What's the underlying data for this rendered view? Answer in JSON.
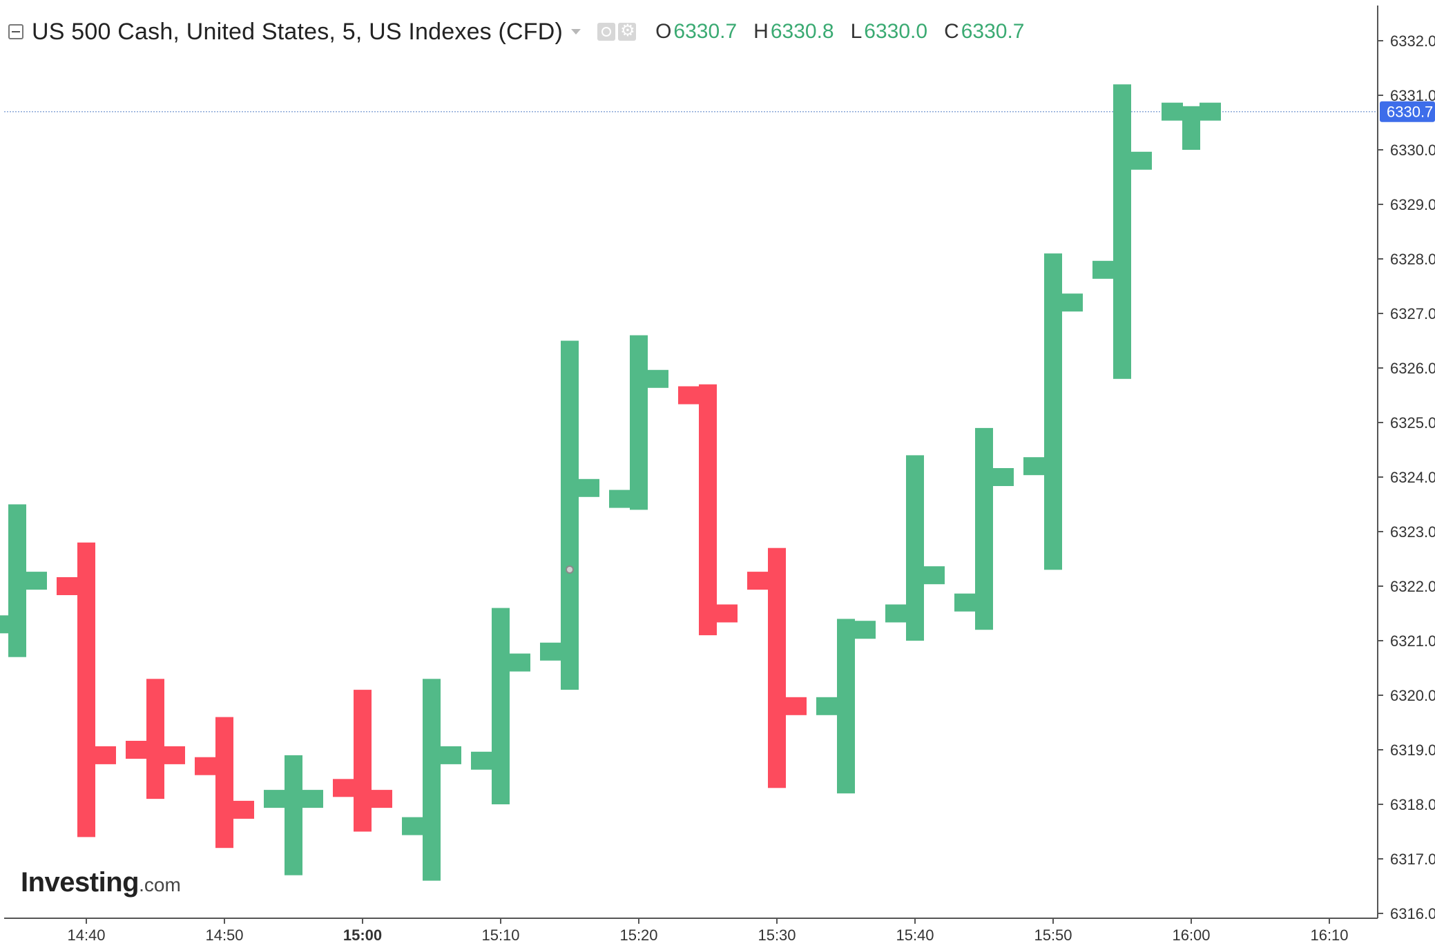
{
  "legend": {
    "title": "US 500 Cash, United States, 5, US Indexes (CFD)",
    "ohlc": [
      {
        "key": "O",
        "value": "6330.7"
      },
      {
        "key": "H",
        "value": "6330.8"
      },
      {
        "key": "L",
        "value": "6330.0"
      },
      {
        "key": "C",
        "value": "6330.7"
      }
    ],
    "controls": [
      "eye-icon",
      "gear-icon"
    ]
  },
  "logo": {
    "brand": "Investing",
    "tld": ".com"
  },
  "price_badge": "6330.7",
  "colors": {
    "up": "#52ba88",
    "down": "#fd4b5d",
    "badge": "#3d6dea",
    "price_line": "#8aa7d8",
    "axis": "#555555",
    "text": "#333333"
  },
  "chart_data": {
    "type": "ohlc",
    "interval": "5",
    "y_ticks": [
      "6316.0",
      "6317.0",
      "6318.0",
      "6319.0",
      "6320.0",
      "6321.0",
      "6322.0",
      "6323.0",
      "6324.0",
      "6325.0",
      "6326.0",
      "6327.0",
      "6328.0",
      "6329.0",
      "6330.0",
      "6331.0",
      "6332.0"
    ],
    "ylim": [
      6316.0,
      6332.0
    ],
    "x_ticks": [
      "14:40",
      "14:50",
      "15:00",
      "15:10",
      "15:20",
      "15:30",
      "15:40",
      "15:50",
      "16:00",
      "16:10"
    ],
    "x_tick_bold": "15:00",
    "current_price": 6330.7,
    "bars": [
      {
        "time": "14:35",
        "open": 6321.3,
        "high": 6323.5,
        "low": 6320.7,
        "close": 6322.1
      },
      {
        "time": "14:40",
        "open": 6322.0,
        "high": 6322.8,
        "low": 6317.4,
        "close": 6318.9
      },
      {
        "time": "14:45",
        "open": 6319.0,
        "high": 6320.3,
        "low": 6318.1,
        "close": 6318.9
      },
      {
        "time": "14:50",
        "open": 6318.7,
        "high": 6319.6,
        "low": 6317.2,
        "close": 6317.9
      },
      {
        "time": "14:55",
        "open": 6318.1,
        "high": 6318.9,
        "low": 6316.7,
        "close": 6318.1
      },
      {
        "time": "15:00",
        "open": 6318.3,
        "high": 6320.1,
        "low": 6317.5,
        "close": 6318.1
      },
      {
        "time": "15:05",
        "open": 6317.6,
        "high": 6320.3,
        "low": 6316.6,
        "close": 6318.9
      },
      {
        "time": "15:10",
        "open": 6318.8,
        "high": 6321.6,
        "low": 6318.0,
        "close": 6320.6
      },
      {
        "time": "15:15",
        "open": 6320.8,
        "high": 6326.5,
        "low": 6320.1,
        "close": 6323.8
      },
      {
        "time": "15:20",
        "open": 6323.6,
        "high": 6326.6,
        "low": 6323.4,
        "close": 6325.8
      },
      {
        "time": "15:25",
        "open": 6325.5,
        "high": 6325.7,
        "low": 6321.1,
        "close": 6321.5
      },
      {
        "time": "15:30",
        "open": 6322.1,
        "high": 6322.7,
        "low": 6318.3,
        "close": 6319.8
      },
      {
        "time": "15:35",
        "open": 6319.8,
        "high": 6321.4,
        "low": 6318.2,
        "close": 6321.2
      },
      {
        "time": "15:40",
        "open": 6321.5,
        "high": 6324.4,
        "low": 6321.0,
        "close": 6322.2
      },
      {
        "time": "15:45",
        "open": 6321.7,
        "high": 6324.9,
        "low": 6321.2,
        "close": 6324.0
      },
      {
        "time": "15:50",
        "open": 6324.2,
        "high": 6328.1,
        "low": 6322.3,
        "close": 6327.2
      },
      {
        "time": "15:55",
        "open": 6327.8,
        "high": 6331.2,
        "low": 6325.8,
        "close": 6329.8
      },
      {
        "time": "16:00",
        "open": 6330.7,
        "high": 6330.8,
        "low": 6330.0,
        "close": 6330.7
      }
    ]
  }
}
